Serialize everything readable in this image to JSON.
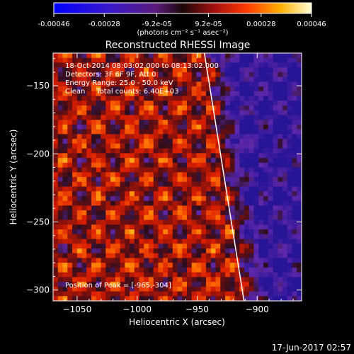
{
  "colorbar": {
    "ticks": [
      -0.00046,
      -0.00028,
      -9.2e-05,
      9.2e-05,
      0.00028,
      0.00046
    ],
    "tick_labels": [
      "-0.00046",
      "-0.00028",
      "-9.2e-05",
      "9.2e-05",
      "0.00028",
      "0.00046"
    ],
    "unit_label": "(photons cm⁻² s⁻¹ asec⁻²)",
    "range": [
      -0.00046,
      0.00046
    ]
  },
  "chart_data": {
    "type": "heatmap",
    "title": "Reconstructed RHESSI Image",
    "xlabel": "Heliocentric X (arcsec)",
    "ylabel": "Heliocentric Y (arcsec)",
    "xlim": [
      -1070,
      -863
    ],
    "ylim": [
      -308,
      -126
    ],
    "xticks": [
      -1050,
      -1000,
      -950,
      -900
    ],
    "yticks": [
      -150,
      -200,
      -250,
      -300
    ],
    "xtick_labels": [
      "−1050",
      "−1000",
      "−950",
      "−900"
    ],
    "ytick_labels": [
      "−150",
      "−200",
      "−250",
      "−300"
    ],
    "limb_line": {
      "x": [
        -944,
        -911
      ],
      "y": [
        -126,
        -308
      ]
    },
    "annotations": [
      "18-Oct-2014 08:03:02.000 to 08:13:02.000",
      "Detectors: 3F 6F 9F, Att 0",
      "Energy Range: 25.0 - 50.0 keV",
      "Clean     Total counts: 6.40E+03"
    ],
    "peak_label": "Position of Peak = [-965,-304]"
  },
  "footer": {
    "timestamp": "17-Jun-2017 02:57"
  }
}
